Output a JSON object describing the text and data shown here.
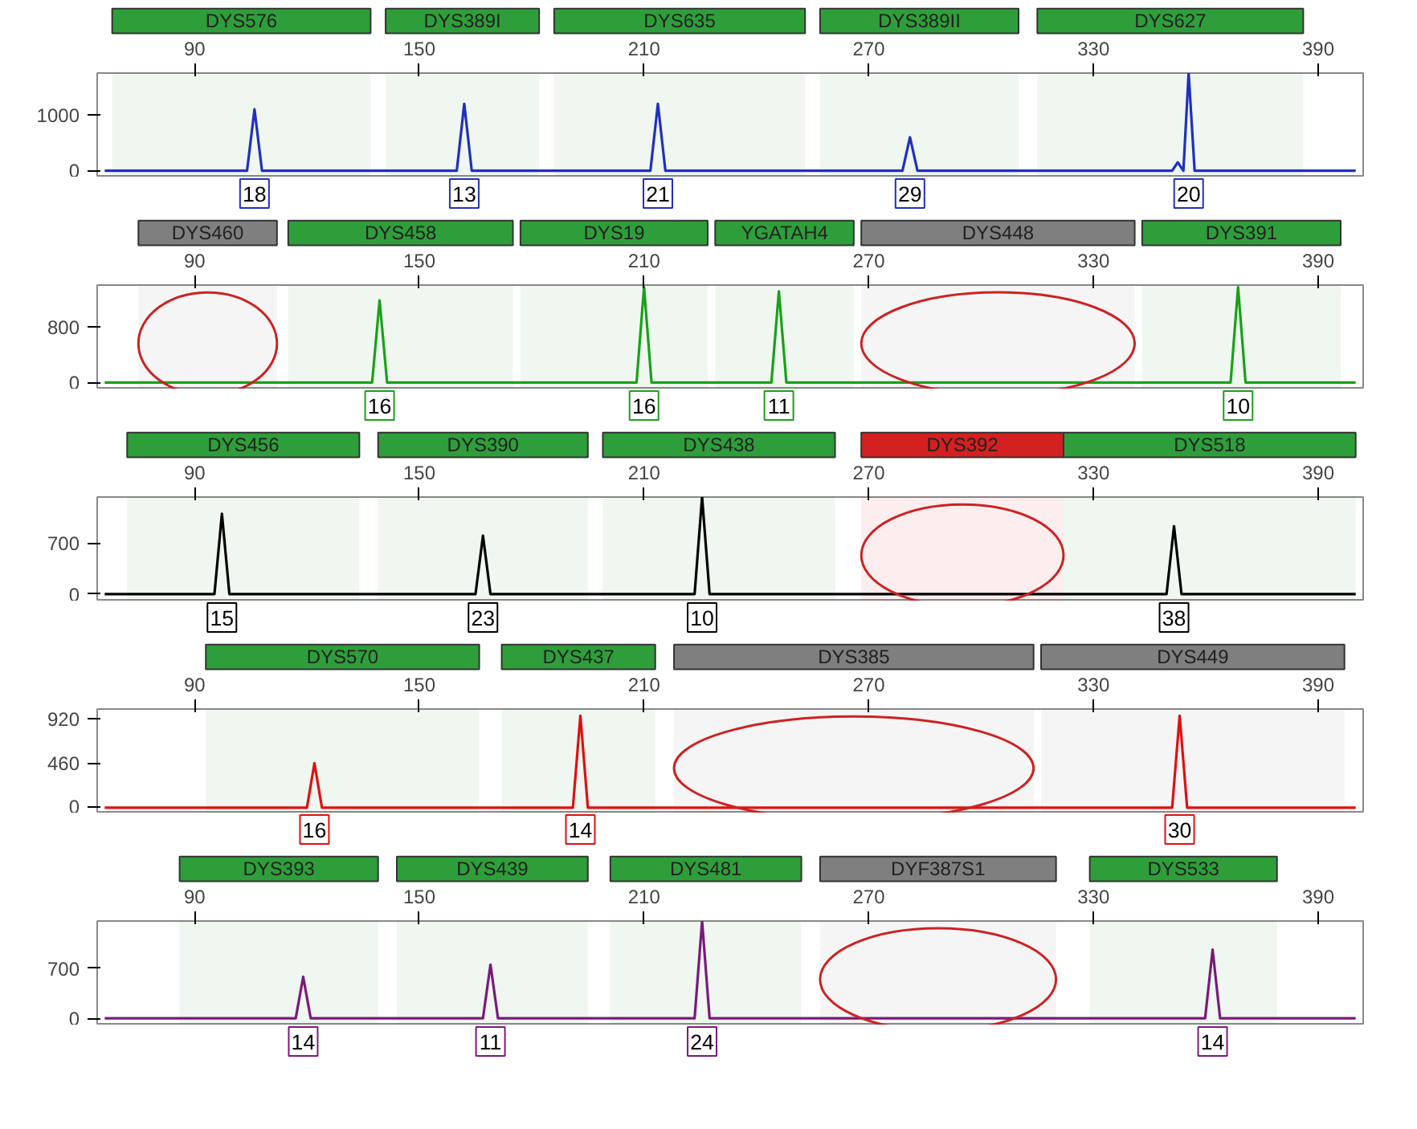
{
  "chart_data": [
    {
      "type": "line",
      "xlim": [
        64,
        402
      ],
      "ylim": [
        -120,
        1750
      ],
      "xticks": [
        90,
        150,
        210,
        270,
        330,
        390
      ],
      "yticks": [
        0,
        1000
      ],
      "grid": false,
      "series": [
        {
          "color": "#2030c0",
          "x": [
            66,
            104,
            106,
            108,
            160,
            162,
            164,
            211.7,
            213.7,
            215.7,
            279,
            281,
            283,
            351,
            352.5,
            354,
            355.4,
            357,
            400
          ],
          "values": [
            0,
            0,
            1100,
            0,
            0,
            1200,
            0,
            0,
            1200,
            0,
            0,
            600,
            0,
            0,
            150,
            0,
            1750,
            0,
            0
          ]
        }
      ],
      "bands": [
        {
          "axis": "x",
          "from": 68,
          "to": 137,
          "label": "DYS576",
          "color": "#2e9e3a"
        },
        {
          "axis": "x",
          "from": 141,
          "to": 182,
          "label": "DYS389I",
          "color": "#2e9e3a"
        },
        {
          "axis": "x",
          "from": 186,
          "to": 253,
          "label": "DYS635",
          "color": "#2e9e3a"
        },
        {
          "axis": "x",
          "from": 257,
          "to": 310,
          "label": "DYS389II",
          "color": "#2e9e3a"
        },
        {
          "axis": "x",
          "from": 315,
          "to": 386,
          "label": "DYS627",
          "color": "#2e9e3a"
        }
      ],
      "annotations": [
        {
          "text": "18",
          "x": 106
        },
        {
          "text": "13",
          "x": 162
        },
        {
          "text": "21",
          "x": 213.7
        },
        {
          "text": "29",
          "x": 281
        },
        {
          "text": "20",
          "x": 355.4
        }
      ]
    },
    {
      "type": "line",
      "xlim": [
        64,
        402
      ],
      "ylim": [
        -100,
        1400
      ],
      "xticks": [
        90,
        150,
        210,
        270,
        330,
        390
      ],
      "yticks": [
        0,
        800
      ],
      "grid": false,
      "series": [
        {
          "color": "#1aa01a",
          "x": [
            66,
            137.4,
            139.4,
            141.4,
            208,
            210,
            212,
            244,
            246,
            248,
            366.6,
            368.6,
            370.6,
            400
          ],
          "values": [
            0,
            0,
            1180,
            0,
            0,
            1370,
            0,
            0,
            1310,
            0,
            0,
            1370,
            0,
            0
          ]
        }
      ],
      "bands": [
        {
          "axis": "x",
          "from": 75,
          "to": 112,
          "label": "DYS460",
          "color": "#7f7f7f"
        },
        {
          "axis": "x",
          "from": 115,
          "to": 175,
          "label": "DYS458",
          "color": "#2e9e3a"
        },
        {
          "axis": "x",
          "from": 177,
          "to": 227,
          "label": "DYS19",
          "color": "#2e9e3a"
        },
        {
          "axis": "x",
          "from": 229,
          "to": 266,
          "label": "YGATAH4",
          "color": "#2e9e3a"
        },
        {
          "axis": "x",
          "from": 268,
          "to": 341,
          "label": "DYS448",
          "color": "#7f7f7f"
        },
        {
          "axis": "x",
          "from": 343,
          "to": 396,
          "label": "DYS391",
          "color": "#2e9e3a"
        }
      ],
      "annotations": [
        {
          "text": "16",
          "x": 139.4
        },
        {
          "text": "16",
          "x": 210
        },
        {
          "text": "11",
          "x": 246
        },
        {
          "text": "10",
          "x": 368.6
        }
      ]
    },
    {
      "type": "line",
      "xlim": [
        64,
        402
      ],
      "ylim": [
        -100,
        1330
      ],
      "xticks": [
        90,
        150,
        210,
        270,
        330,
        390
      ],
      "yticks": [
        0,
        700
      ],
      "grid": false,
      "series": [
        {
          "color": "#000000",
          "x": [
            66,
            95.3,
            97.3,
            99.3,
            165,
            167,
            169,
            223.5,
            225.5,
            227.5,
            349.5,
            351.5,
            353.5,
            400
          ],
          "values": [
            0,
            0,
            1100,
            0,
            0,
            800,
            0,
            0,
            1330,
            0,
            0,
            930,
            0,
            0
          ]
        }
      ],
      "bands": [
        {
          "axis": "x",
          "from": 72,
          "to": 134,
          "label": "DYS456",
          "color": "#2e9e3a"
        },
        {
          "axis": "x",
          "from": 139,
          "to": 195,
          "label": "DYS390",
          "color": "#2e9e3a"
        },
        {
          "axis": "x",
          "from": 199,
          "to": 261,
          "label": "DYS438",
          "color": "#2e9e3a"
        },
        {
          "axis": "x",
          "from": 268,
          "to": 322,
          "label": "DYS392",
          "color": "#d42020"
        },
        {
          "axis": "x",
          "from": 322,
          "to": 400,
          "label": "DYS518",
          "color": "#2e9e3a"
        }
      ],
      "annotations": [
        {
          "text": "15",
          "x": 97.3
        },
        {
          "text": "23",
          "x": 167
        },
        {
          "text": "10",
          "x": 225.5
        },
        {
          "text": "38",
          "x": 351.5
        }
      ]
    },
    {
      "type": "line",
      "xlim": [
        64,
        402
      ],
      "ylim": [
        -60,
        1020
      ],
      "xticks": [
        90,
        150,
        210,
        270,
        330,
        390
      ],
      "yticks": [
        0,
        460,
        920
      ],
      "grid": false,
      "series": [
        {
          "color": "#e01010",
          "x": [
            66,
            120,
            122,
            124,
            191,
            193,
            195,
            351,
            353,
            355,
            400
          ],
          "values": [
            0,
            0,
            460,
            0,
            0,
            950,
            0,
            0,
            950,
            0,
            0
          ]
        }
      ],
      "bands": [
        {
          "axis": "x",
          "from": 93,
          "to": 166,
          "label": "DYS570",
          "color": "#2e9e3a"
        },
        {
          "axis": "x",
          "from": 172,
          "to": 213,
          "label": "DYS437",
          "color": "#2e9e3a"
        },
        {
          "axis": "x",
          "from": 218,
          "to": 314,
          "label": "DYS385",
          "color": "#7f7f7f"
        },
        {
          "axis": "x",
          "from": 316,
          "to": 397,
          "label": "DYS449",
          "color": "#7f7f7f"
        }
      ],
      "annotations": [
        {
          "text": "16",
          "x": 122
        },
        {
          "text": "14",
          "x": 193
        },
        {
          "text": "30",
          "x": 353
        }
      ]
    },
    {
      "type": "line",
      "xlim": [
        64,
        402
      ],
      "ylim": [
        -100,
        1360
      ],
      "xticks": [
        90,
        150,
        210,
        270,
        330,
        390
      ],
      "yticks": [
        0,
        700
      ],
      "grid": false,
      "series": [
        {
          "color": "#7a1a7a",
          "x": [
            66,
            117,
            119,
            121,
            167,
            169,
            171,
            223.5,
            225.5,
            227.5,
            359.8,
            361.8,
            363.8,
            400
          ],
          "values": [
            0,
            0,
            580,
            0,
            0,
            750,
            0,
            0,
            1360,
            0,
            0,
            960,
            0,
            0
          ]
        }
      ],
      "bands": [
        {
          "axis": "x",
          "from": 86,
          "to": 139,
          "label": "DYS393",
          "color": "#2e9e3a"
        },
        {
          "axis": "x",
          "from": 144,
          "to": 195,
          "label": "DYS439",
          "color": "#2e9e3a"
        },
        {
          "axis": "x",
          "from": 201,
          "to": 252,
          "label": "DYS481",
          "color": "#2e9e3a"
        },
        {
          "axis": "x",
          "from": 257,
          "to": 320,
          "label": "DYF387S1",
          "color": "#7f7f7f"
        },
        {
          "axis": "x",
          "from": 329,
          "to": 379,
          "label": "DYS533",
          "color": "#2e9e3a"
        }
      ],
      "annotations": [
        {
          "text": "14",
          "x": 119
        },
        {
          "text": "11",
          "x": 169
        },
        {
          "text": "24",
          "x": 225.5
        },
        {
          "text": "14",
          "x": 361.8
        }
      ]
    }
  ]
}
